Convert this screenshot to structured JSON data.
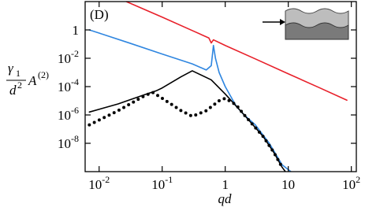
{
  "chart_data": {
    "type": "line",
    "panel_label": "(D)",
    "xlabel": "qd",
    "ylabel": {
      "gamma": "γ",
      "gamma_sub": "1",
      "d": "d",
      "d_sup": "2",
      "A": "A",
      "A_sup": "(2)"
    },
    "log_x": true,
    "log_y": true,
    "xlim": [
      0.006,
      120
    ],
    "ylim": [
      1e-10,
      100
    ],
    "xticks": [
      {
        "value": 0.01,
        "label": "10",
        "exponent": "-2"
      },
      {
        "value": 0.1,
        "label": "10",
        "exponent": "-1"
      },
      1,
      10,
      {
        "value": 100,
        "label": "10",
        "exponent": "2"
      }
    ],
    "yticks": [
      {
        "value": 1e-08,
        "label": "10",
        "exponent": "-8"
      },
      {
        "value": 1e-06,
        "label": "10",
        "exponent": "-6"
      },
      {
        "value": 0.0001,
        "label": "10",
        "exponent": "-4"
      },
      {
        "value": 0.01,
        "label": "10",
        "exponent": "-2"
      },
      1
    ],
    "series": [
      {
        "color": "#e8202a",
        "style": "solid",
        "x": [
          0.027,
          0.1,
          0.3,
          0.55,
          0.6,
          0.65,
          1,
          3,
          10,
          30,
          85
        ],
        "values": [
          100,
          8,
          0.9,
          0.27,
          0.12,
          0.2,
          0.08,
          0.009,
          0.0008,
          9e-05,
          1.1e-05
        ]
      },
      {
        "color": "#2f86e0",
        "style": "solid",
        "x": [
          0.007,
          0.01,
          0.03,
          0.1,
          0.3,
          0.5,
          0.6,
          0.65,
          0.7,
          0.8,
          1,
          1.5,
          2,
          3,
          5,
          8,
          11
        ],
        "values": [
          1,
          0.6,
          0.12,
          0.02,
          0.004,
          0.0015,
          0.003,
          0.08,
          0.01,
          0.001,
          0.0001,
          4e-06,
          1e-06,
          2e-07,
          1e-08,
          3e-10,
          1e-10
        ]
      },
      {
        "color": "#000000",
        "style": "solid",
        "x": [
          0.007,
          0.02,
          0.05,
          0.08,
          0.1,
          0.2,
          0.3,
          0.6,
          1,
          2,
          4,
          6,
          8,
          9
        ],
        "values": [
          1.6e-06,
          6e-06,
          2.5e-05,
          5e-05,
          8e-05,
          0.0005,
          0.0013,
          0.0003,
          3e-05,
          1e-06,
          3e-08,
          2e-09,
          2e-10,
          1e-10
        ]
      },
      {
        "color": "#000000",
        "style": "dotted",
        "x": [
          0.007,
          0.02,
          0.05,
          0.07,
          0.1,
          0.2,
          0.3,
          0.5,
          0.8,
          1,
          1.5,
          2,
          4,
          6,
          8
        ],
        "values": [
          2e-07,
          2e-06,
          2e-05,
          4e-05,
          1.5e-05,
          2e-06,
          8e-07,
          2e-06,
          1e-05,
          1.5e-05,
          5e-06,
          1e-06,
          3e-08,
          2e-09,
          2e-10
        ]
      }
    ]
  }
}
